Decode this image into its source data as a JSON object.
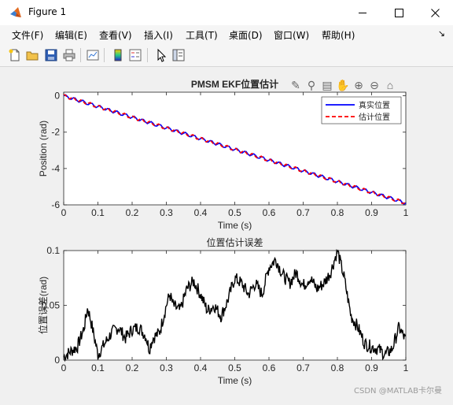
{
  "window": {
    "title": "Figure 1"
  },
  "menu": [
    "文件(F)",
    "编辑(E)",
    "查看(V)",
    "插入(I)",
    "工具(T)",
    "桌面(D)",
    "窗口(W)",
    "帮助(H)"
  ],
  "watermark": "CSDN @MATLAB卡尔曼",
  "chart_data": [
    {
      "type": "line",
      "title": "PMSM EKF位置估计",
      "xlabel": "Time (s)",
      "ylabel": "Position (rad)",
      "xlim": [
        0,
        1
      ],
      "ylim": [
        -6,
        0.2
      ],
      "xticks": [
        "0",
        "0.1",
        "0.2",
        "0.3",
        "0.4",
        "0.5",
        "0.6",
        "0.7",
        "0.8",
        "0.9",
        "1"
      ],
      "yticks": [
        "0",
        "-2",
        "-4",
        "-6"
      ],
      "legend": "top-right",
      "series": [
        {
          "name": "真实位置",
          "color": "#0000ff",
          "style": "solid",
          "x": [
            0,
            1
          ],
          "y": [
            0,
            -5.9
          ]
        },
        {
          "name": "估计位置",
          "color": "#ff0000",
          "style": "dashed",
          "x": [
            0,
            1
          ],
          "y": [
            0,
            -5.9
          ]
        }
      ]
    },
    {
      "type": "line",
      "title": "位置估计误差",
      "xlabel": "Time (s)",
      "ylabel": "位置误差(rad)",
      "xlim": [
        0,
        1
      ],
      "ylim": [
        0,
        0.1
      ],
      "xticks": [
        "0",
        "0.1",
        "0.2",
        "0.3",
        "0.4",
        "0.5",
        "0.6",
        "0.7",
        "0.8",
        "0.9",
        "1"
      ],
      "yticks": [
        "0",
        "0.05",
        "0.1"
      ],
      "series": [
        {
          "color": "#000000",
          "x": [
            0,
            0.02,
            0.04,
            0.06,
            0.07,
            0.08,
            0.1,
            0.12,
            0.14,
            0.16,
            0.18,
            0.2,
            0.22,
            0.24,
            0.25,
            0.26,
            0.28,
            0.3,
            0.31,
            0.32,
            0.34,
            0.36,
            0.38,
            0.4,
            0.42,
            0.44,
            0.46,
            0.48,
            0.5,
            0.52,
            0.54,
            0.56,
            0.58,
            0.6,
            0.62,
            0.64,
            0.66,
            0.68,
            0.7,
            0.72,
            0.74,
            0.76,
            0.78,
            0.8,
            0.82,
            0.84,
            0.86,
            0.88,
            0.9,
            0.92,
            0.94,
            0.96,
            0.98,
            1
          ],
          "y": [
            0.003,
            0.008,
            0.012,
            0.03,
            0.048,
            0.035,
            0.005,
            0.015,
            0.025,
            0.03,
            0.02,
            0.028,
            0.03,
            0.022,
            0.01,
            0.02,
            0.025,
            0.05,
            0.06,
            0.05,
            0.045,
            0.065,
            0.072,
            0.06,
            0.045,
            0.05,
            0.04,
            0.055,
            0.075,
            0.07,
            0.06,
            0.07,
            0.06,
            0.085,
            0.092,
            0.078,
            0.07,
            0.08,
            0.068,
            0.075,
            0.065,
            0.07,
            0.08,
            0.1,
            0.075,
            0.04,
            0.03,
            0.015,
            0.012,
            0.01,
            0.005,
            0.01,
            0.03,
            0.018
          ]
        }
      ]
    }
  ]
}
